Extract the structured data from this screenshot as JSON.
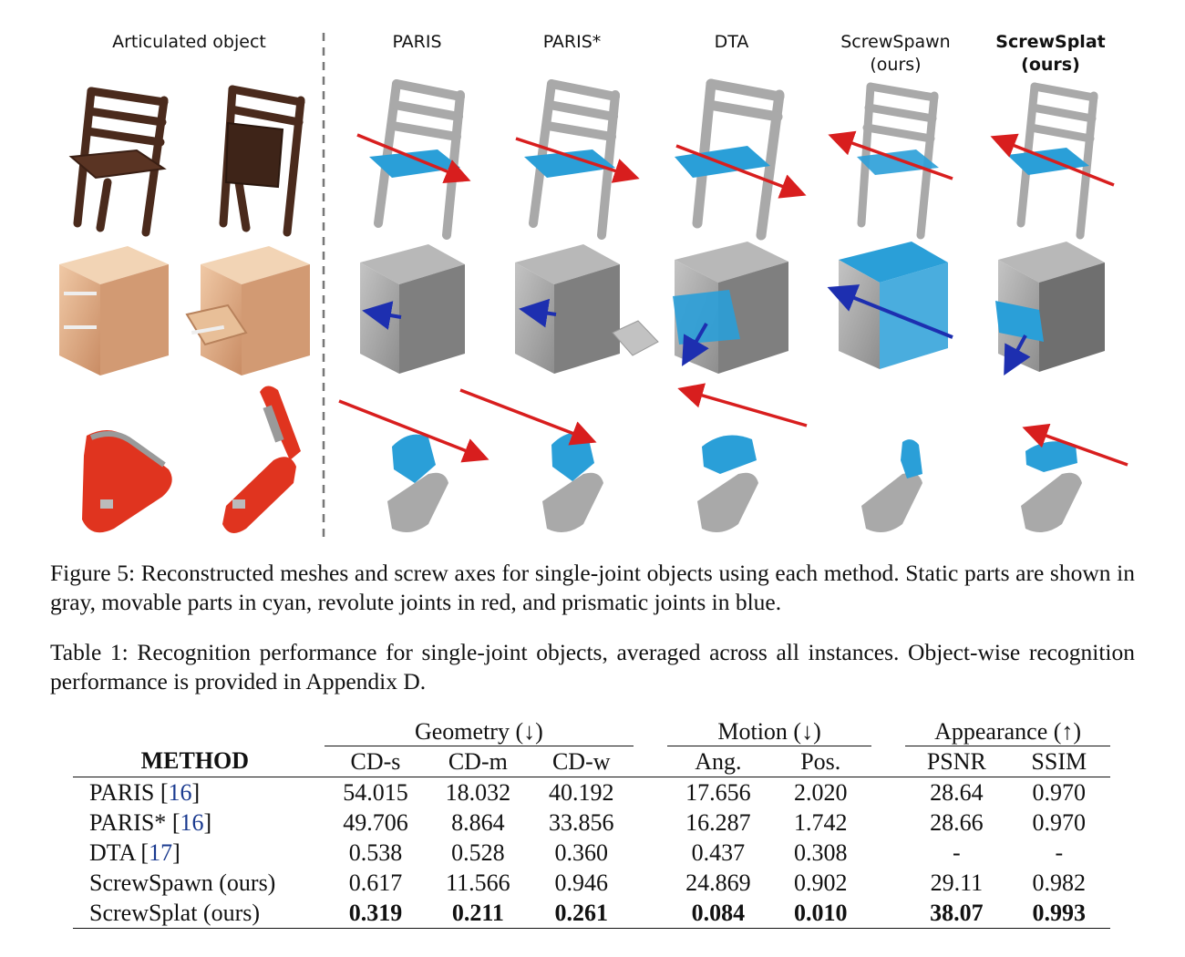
{
  "figure": {
    "column_headers": {
      "articulated": "Articulated object",
      "paris": "PARIS",
      "paris_star": "PARIS*",
      "dta": "DTA",
      "screwspawn_line1": "ScrewSpawn",
      "screwspawn_line2": "(ours)",
      "screwsplat_line1": "ScrewSplat",
      "screwsplat_line2": "(ours)"
    },
    "colors": {
      "static_part": "#a9a9a9",
      "movable_part": "#2a9fd8",
      "revolute_joint": "#d81e1e",
      "prismatic_joint": "#1d2fb0",
      "chair_wood": "#4a2a1c",
      "cabinet_wood": "#d9a27c",
      "stapler_red": "#e0341f"
    },
    "rows": [
      "chair",
      "cabinet",
      "stapler"
    ],
    "caption": "Figure 5: Reconstructed meshes and screw axes for single-joint objects using each method. Static parts are shown in gray, movable parts in cyan, revolute joints in red, and prismatic joints in blue."
  },
  "table": {
    "caption": "Table 1: Recognition performance for single-joint objects, averaged across all instances. Object-wise recognition performance is provided in Appendix D.",
    "groups": {
      "geometry": "Geometry (↓)",
      "motion": "Motion (↓)",
      "appearance": "Appearance (↑)"
    },
    "header": {
      "method": "METHOD",
      "cd_s": "CD-s",
      "cd_m": "CD-m",
      "cd_w": "CD-w",
      "ang": "Ang.",
      "pos": "Pos.",
      "psnr": "PSNR",
      "ssim": "SSIM"
    },
    "rows": [
      {
        "method": "PARIS",
        "cite": "16",
        "values": [
          "54.015",
          "18.032",
          "40.192",
          "17.656",
          "2.020",
          "28.64",
          "0.970"
        ]
      },
      {
        "method": "PARIS*",
        "cite": "16",
        "values": [
          "49.706",
          "8.864",
          "33.856",
          "16.287",
          "1.742",
          "28.66",
          "0.970"
        ]
      },
      {
        "method": "DTA",
        "cite": "17",
        "values": [
          "0.538",
          "0.528",
          "0.360",
          "0.437",
          "0.308",
          "-",
          "-"
        ]
      },
      {
        "method": "ScrewSpawn (ours)",
        "cite": "",
        "values": [
          "0.617",
          "11.566",
          "0.946",
          "24.869",
          "0.902",
          "29.11",
          "0.982"
        ]
      },
      {
        "method": "ScrewSplat (ours)",
        "cite": "",
        "values": [
          "0.319",
          "0.211",
          "0.261",
          "0.084",
          "0.010",
          "38.07",
          "0.993"
        ],
        "bold": true
      }
    ]
  }
}
